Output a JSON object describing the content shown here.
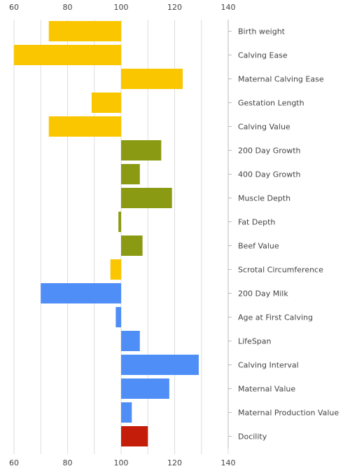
{
  "chart_data": {
    "type": "bar",
    "orientation": "horizontal",
    "baseline": 100,
    "xlim": [
      60,
      140
    ],
    "x_ticks": [
      60,
      80,
      100,
      120,
      140
    ],
    "x_tick_labels": [
      "60",
      "80",
      "100",
      "120",
      "140"
    ],
    "gridlines": [
      60,
      70,
      80,
      90,
      100,
      110,
      120,
      130,
      140
    ],
    "grid": true,
    "tick_label_position": "top and bottom",
    "category_label_position": "right",
    "categories": [
      "Birth weight",
      "Calving Ease",
      "Maternal Calving Ease",
      "Gestation Length",
      "Calving Value",
      "200 Day Growth",
      "400 Day Growth",
      "Muscle Depth",
      "Fat Depth",
      "Beef Value",
      "Scrotal Circumference",
      "200 Day Milk",
      "Age at First Calving",
      "LifeSpan",
      "Calving Interval",
      "Maternal Value",
      "Maternal Production Value",
      "Docility"
    ],
    "values": [
      73,
      60,
      123,
      89,
      73,
      115,
      107,
      119,
      99,
      108,
      96,
      70,
      98,
      107,
      129,
      118,
      104,
      110
    ],
    "bar_colors": [
      "#f9c600",
      "#f9c600",
      "#f9c600",
      "#f9c600",
      "#f9c600",
      "#8a9a12",
      "#8a9a12",
      "#8a9a12",
      "#8a9a12",
      "#8a9a12",
      "#f9c600",
      "#4f8ef7",
      "#4f8ef7",
      "#4f8ef7",
      "#4f8ef7",
      "#4f8ef7",
      "#4f8ef7",
      "#c41e0a"
    ],
    "colors": {
      "calving": "#f9c600",
      "growth": "#8a9a12",
      "maternal": "#4f8ef7",
      "docility": "#c41e0a",
      "grid": "#dddddd",
      "axis": "#bbbbbb",
      "text": "#444444"
    }
  }
}
